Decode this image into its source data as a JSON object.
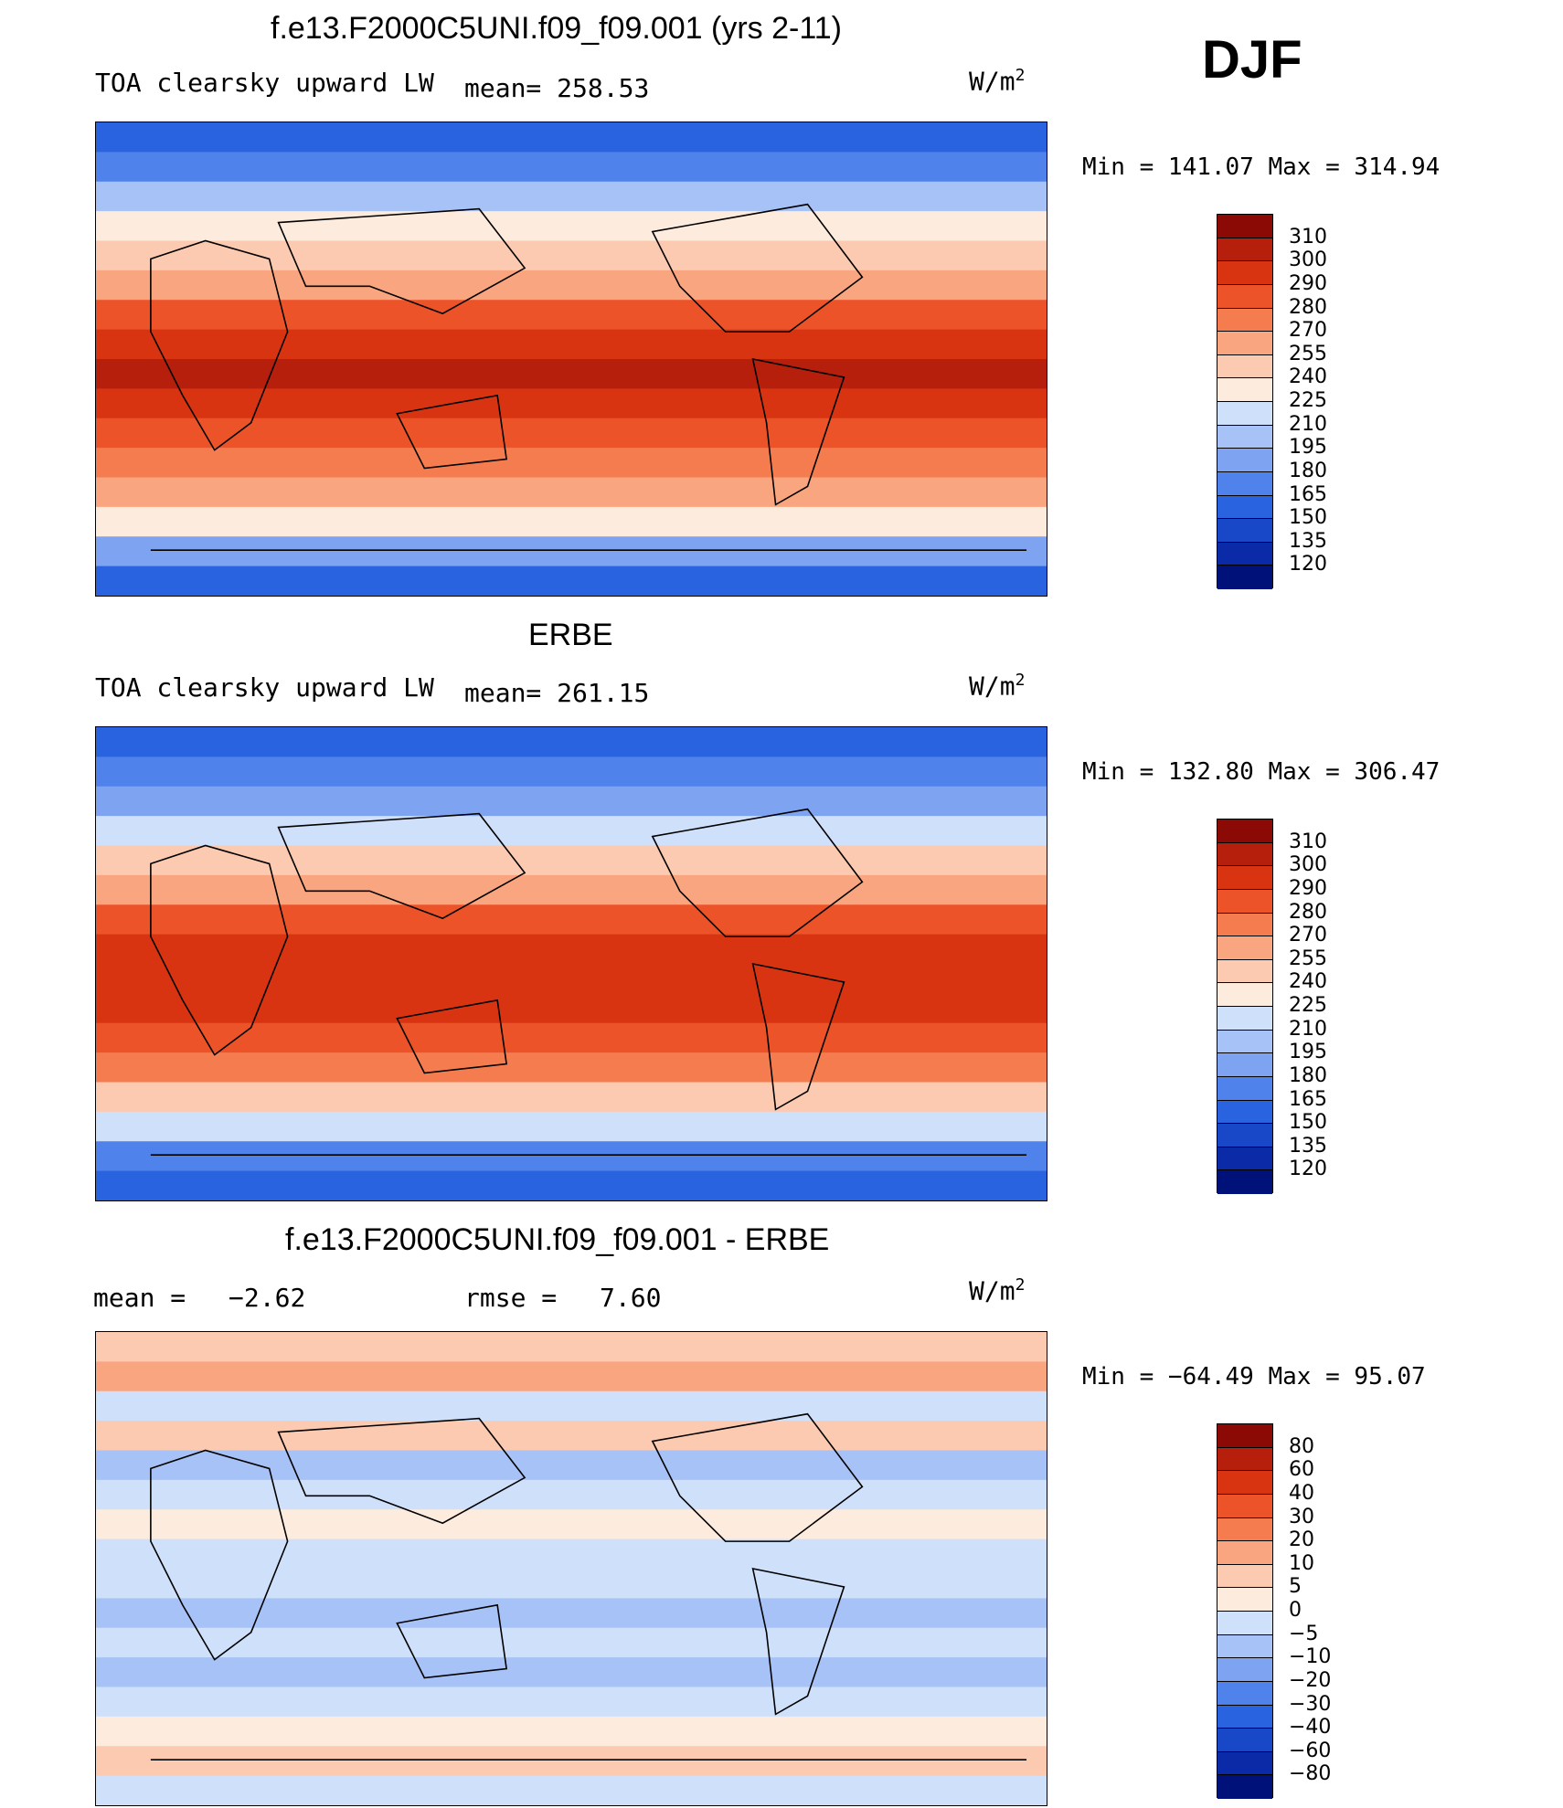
{
  "season": "DJF",
  "units_base": "W/m",
  "units_exp": "2",
  "panels": [
    {
      "title": "f.e13.F2000C5UNI.f09_f09.001 (yrs 2-11)",
      "variable": "TOA clearsky upward LW",
      "mean_label": "mean=",
      "mean": "258.53",
      "minmax": "Min = 141.07 Max = 314.94"
    },
    {
      "title": "ERBE",
      "variable": "TOA clearsky upward LW",
      "mean_label": "mean=",
      "mean": "261.15",
      "minmax": "Min = 132.80 Max = 306.47"
    },
    {
      "title": "f.e13.F2000C5UNI.f09_f09.001 - ERBE",
      "mean_label": "mean =",
      "mean": "−2.62",
      "rmse_label": "rmse =",
      "rmse": "7.60",
      "minmax": "Min = −64.49 Max =  95.07"
    }
  ],
  "colors": {
    "field": [
      "#00127a",
      "#0a2aa8",
      "#1848c8",
      "#2a63e0",
      "#4f82ea",
      "#7ea3f0",
      "#a7c2f6",
      "#cfe0fa",
      "#fdebdd",
      "#fccab0",
      "#f9a57f",
      "#f57c4f",
      "#ec5329",
      "#d93412",
      "#b51f0c",
      "#8b0a06"
    ],
    "diff": [
      "#00127a",
      "#0a2aa8",
      "#1848c8",
      "#2a63e0",
      "#4f82ea",
      "#7ea3f0",
      "#a7c2f6",
      "#cfe0fa",
      "#fdebdd",
      "#fccab0",
      "#f9a57f",
      "#f57c4f",
      "#ec5329",
      "#d93412",
      "#b51f0c",
      "#8b0a06"
    ]
  },
  "chart_data": [
    {
      "type": "heatmap",
      "title": "f.e13.F2000C5UNI.f09_f09.001 (yrs 2-11)",
      "variable": "TOA clearsky upward LW",
      "units": "W/m2",
      "mean": 258.53,
      "min": 141.07,
      "max": 314.94,
      "colorbar_levels": [
        310,
        300,
        290,
        280,
        270,
        255,
        240,
        225,
        210,
        195,
        180,
        165,
        150,
        135,
        120
      ],
      "zonal_band_levels_north_to_south": [
        150,
        165,
        195,
        225,
        240,
        255,
        280,
        290,
        300,
        290,
        280,
        270,
        255,
        225,
        180,
        150
      ]
    },
    {
      "type": "heatmap",
      "title": "ERBE",
      "variable": "TOA clearsky upward LW",
      "units": "W/m2",
      "mean": 261.15,
      "min": 132.8,
      "max": 306.47,
      "colorbar_levels": [
        310,
        300,
        290,
        280,
        270,
        255,
        240,
        225,
        210,
        195,
        180,
        165,
        150,
        135,
        120
      ],
      "zonal_band_levels_north_to_south": [
        150,
        165,
        180,
        210,
        240,
        255,
        280,
        290,
        290,
        290,
        280,
        270,
        240,
        210,
        165,
        150
      ]
    },
    {
      "type": "heatmap",
      "title": "f.e13.F2000C5UNI.f09_f09.001 - ERBE",
      "units": "W/m2",
      "mean": -2.62,
      "rmse": 7.6,
      "min": -64.49,
      "max": 95.07,
      "colorbar_levels": [
        80,
        60,
        40,
        30,
        20,
        10,
        5,
        0,
        -5,
        -10,
        -20,
        -30,
        -40,
        -60,
        -80
      ],
      "zonal_band_levels_north_to_south": [
        5,
        10,
        -5,
        5,
        -10,
        -5,
        0,
        -5,
        -5,
        -10,
        -5,
        -10,
        -5,
        0,
        5,
        -5
      ]
    }
  ]
}
